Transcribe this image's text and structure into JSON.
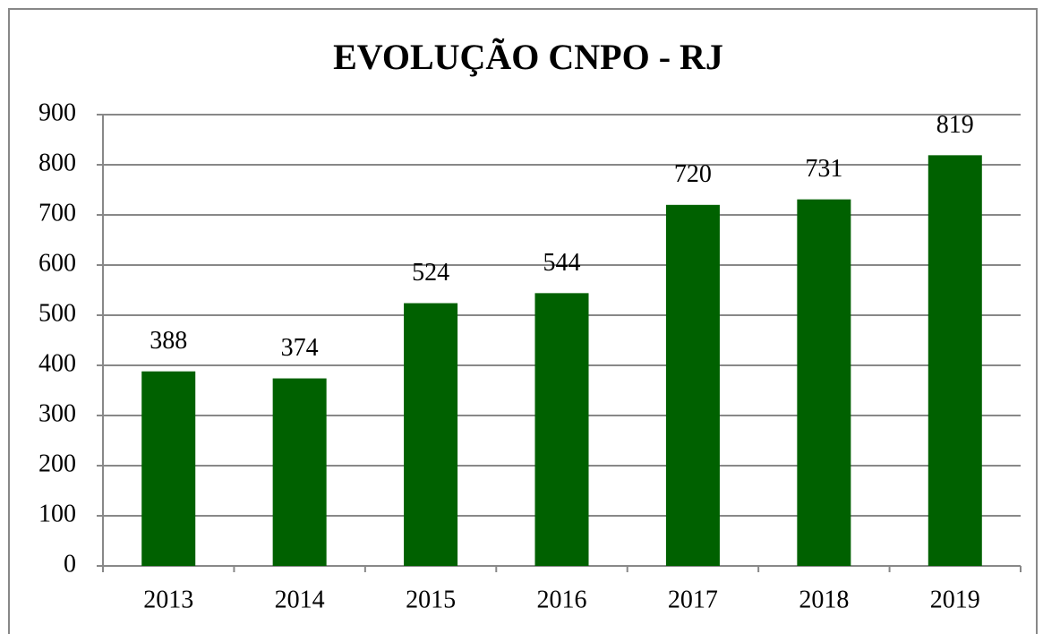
{
  "chart_data": {
    "type": "bar",
    "title": "EVOLUÇÃO CNPO - RJ",
    "categories": [
      "2013",
      "2014",
      "2015",
      "2016",
      "2017",
      "2018",
      "2019"
    ],
    "values": [
      388,
      374,
      524,
      544,
      720,
      731,
      819
    ],
    "color": "#006100",
    "ylim": [
      0,
      900
    ],
    "yticks": [
      0,
      100,
      200,
      300,
      400,
      500,
      600,
      700,
      800,
      900
    ],
    "grid": true
  }
}
